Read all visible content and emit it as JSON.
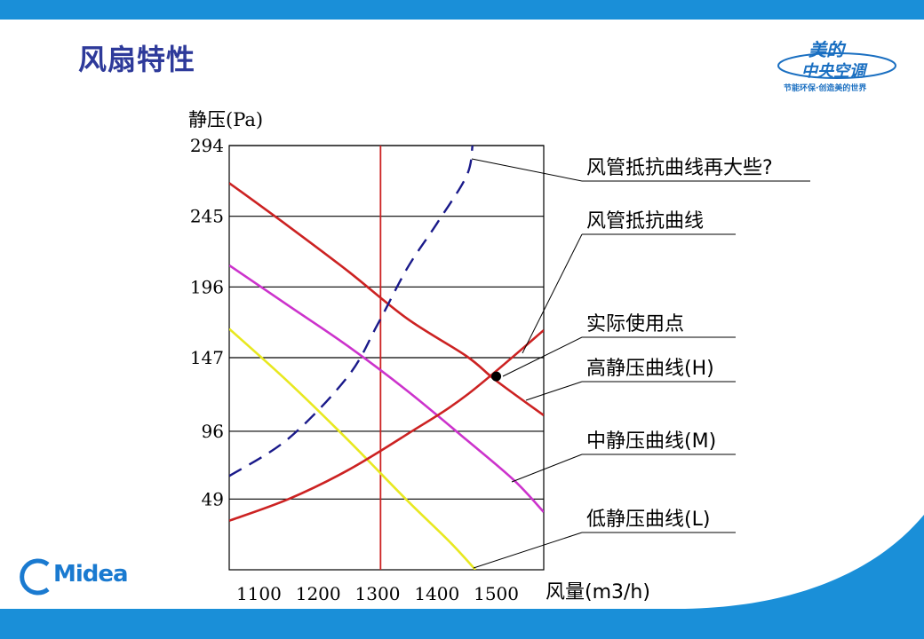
{
  "slide": {
    "title": "风扇特性"
  },
  "brand": {
    "cn_line1": "美的",
    "cn_line2": "中央空调",
    "slogan": "节能环保·创造美的世界",
    "logo_text": "Midea"
  },
  "colors": {
    "top_bar": "#1a8fd8",
    "bottom_band": "#1a8fd8",
    "title": "#2e3a9a",
    "brand": "#1a6fc1",
    "high_curve": "#cc2222",
    "mid_curve": "#cc33cc",
    "low_curve": "#e8e820",
    "duct_curve": "#cc2222",
    "duct_bigger_curve": "#1a1a8a",
    "operating_line": "#cc2222"
  },
  "chart_data": {
    "type": "line",
    "xlabel": "风量(m3/h)",
    "ylabel": "静压(Pa)",
    "xlim": [
      1050,
      1580
    ],
    "ylim": [
      0,
      294
    ],
    "x_ticks": [
      1100,
      1200,
      1300,
      1400,
      1500
    ],
    "y_ticks": [
      49,
      96,
      147,
      196,
      245,
      294
    ],
    "grid": "horizontal",
    "series": [
      {
        "name": "高静压曲线(H)",
        "color": "#cc2222",
        "style": "solid",
        "x": [
          1050,
          1150,
          1250,
          1350,
          1450,
          1500,
          1580
        ],
        "y": [
          268,
          238,
          207,
          174,
          148,
          131,
          107
        ]
      },
      {
        "name": "中静压曲线(M)",
        "color": "#cc33cc",
        "style": "solid",
        "x": [
          1050,
          1150,
          1250,
          1350,
          1450,
          1530,
          1580
        ],
        "y": [
          211,
          183,
          155,
          124,
          90,
          62,
          40
        ]
      },
      {
        "name": "低静压曲线(L)",
        "color": "#e8e820",
        "style": "solid",
        "x": [
          1050,
          1150,
          1250,
          1350,
          1420,
          1465
        ],
        "y": [
          167,
          130,
          90,
          48,
          20,
          0
        ]
      },
      {
        "name": "风管抵抗曲线",
        "color": "#cc2222",
        "style": "solid",
        "x": [
          1050,
          1150,
          1250,
          1350,
          1450,
          1580
        ],
        "y": [
          34,
          49,
          69,
          94,
          121,
          166
        ]
      },
      {
        "name": "风管抵抗曲线再大些?",
        "color": "#1a1a8a",
        "style": "dashed",
        "x": [
          1050,
          1150,
          1250,
          1300,
          1350,
          1400,
          1450,
          1460
        ],
        "y": [
          65,
          91,
          134,
          170,
          209,
          240,
          273,
          294
        ]
      }
    ],
    "vertical_line": {
      "x": 1305,
      "color": "#cc2222"
    },
    "operating_point": {
      "name": "实际使用点",
      "x": 1500,
      "y": 134
    },
    "annotations": [
      {
        "text": "风管抵抗曲线再大些?",
        "target": "duct-bigger"
      },
      {
        "text": "风管抵抗曲线",
        "target": "duct"
      },
      {
        "text": "实际使用点",
        "target": "point"
      },
      {
        "text": "高静压曲线(H)",
        "target": "high"
      },
      {
        "text": "中静压曲线(M)",
        "target": "mid"
      },
      {
        "text": "低静压曲线(L)",
        "target": "low"
      }
    ]
  }
}
